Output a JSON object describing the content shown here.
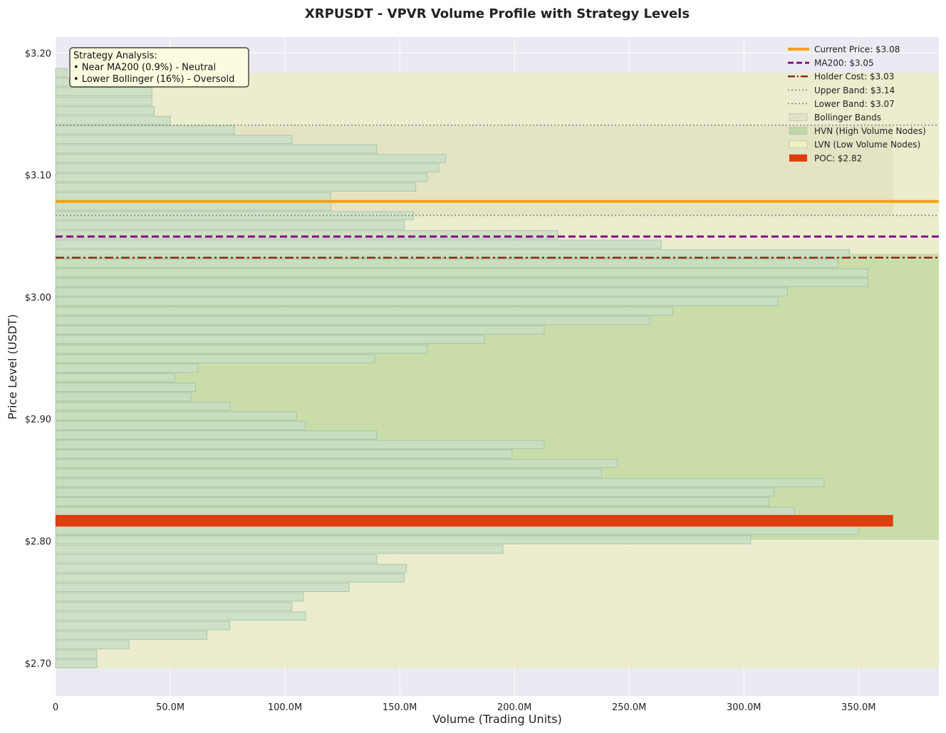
{
  "chart_data": {
    "type": "bar",
    "orientation": "horizontal",
    "title": "XRPUSDT - VPVR Volume Profile with Strategy Levels",
    "xlabel": "Volume (Trading Units)",
    "ylabel": "Price Level (USDT)",
    "xlim": [
      0,
      385000000
    ],
    "ylim": [
      2.673,
      3.213
    ],
    "x_ticks": [
      0,
      50000000,
      100000000,
      150000000,
      200000000,
      250000000,
      300000000,
      350000000
    ],
    "x_tick_labels": [
      "0",
      "50.0M",
      "100.0M",
      "150.0M",
      "200.0M",
      "250.0M",
      "300.0M",
      "350.0M"
    ],
    "y_ticks": [
      2.7,
      2.8,
      2.9,
      3.0,
      3.1,
      3.2
    ],
    "y_tick_labels": [
      "$2.70",
      "$2.80",
      "$2.90",
      "$3.00",
      "$3.10",
      "$3.20"
    ],
    "grid": true,
    "legend_position": "top-right",
    "bar_height": 0.0068,
    "bars": [
      {
        "price": 2.6994,
        "volume": 18000000
      },
      {
        "price": 2.7072,
        "volume": 18000000
      },
      {
        "price": 2.715,
        "volume": 32000000
      },
      {
        "price": 2.7228,
        "volume": 66000000
      },
      {
        "price": 2.7306,
        "volume": 76000000
      },
      {
        "price": 2.7385,
        "volume": 109000000
      },
      {
        "price": 2.7463,
        "volume": 103000000
      },
      {
        "price": 2.7541,
        "volume": 108000000
      },
      {
        "price": 2.7619,
        "volume": 128000000
      },
      {
        "price": 2.7697,
        "volume": 152000000
      },
      {
        "price": 2.7775,
        "volume": 153000000
      },
      {
        "price": 2.7853,
        "volume": 140000000
      },
      {
        "price": 2.7932,
        "volume": 195000000
      },
      {
        "price": 2.801,
        "volume": 303000000
      },
      {
        "price": 2.8088,
        "volume": 350000000
      },
      {
        "price": 2.8166,
        "volume": 365000000
      },
      {
        "price": 2.8244,
        "volume": 322000000
      },
      {
        "price": 2.8322,
        "volume": 311000000
      },
      {
        "price": 2.84,
        "volume": 313000000
      },
      {
        "price": 2.8478,
        "volume": 335000000
      },
      {
        "price": 2.8557,
        "volume": 238000000
      },
      {
        "price": 2.8635,
        "volume": 245000000
      },
      {
        "price": 2.8713,
        "volume": 199000000
      },
      {
        "price": 2.8791,
        "volume": 213000000
      },
      {
        "price": 2.8869,
        "volume": 140000000
      },
      {
        "price": 2.8947,
        "volume": 109000000
      },
      {
        "price": 2.9025,
        "volume": 105000000
      },
      {
        "price": 2.9104,
        "volume": 76000000
      },
      {
        "price": 2.9182,
        "volume": 59000000
      },
      {
        "price": 2.926,
        "volume": 61000000
      },
      {
        "price": 2.9338,
        "volume": 52000000
      },
      {
        "price": 2.9416,
        "volume": 62000000
      },
      {
        "price": 2.9494,
        "volume": 139000000
      },
      {
        "price": 2.9572,
        "volume": 162000000
      },
      {
        "price": 2.9651,
        "volume": 187000000
      },
      {
        "price": 2.9729,
        "volume": 213000000
      },
      {
        "price": 2.9807,
        "volume": 259000000
      },
      {
        "price": 2.9885,
        "volume": 269000000
      },
      {
        "price": 2.9963,
        "volume": 315000000
      },
      {
        "price": 3.0041,
        "volume": 319000000
      },
      {
        "price": 3.0119,
        "volume": 354000000
      },
      {
        "price": 3.0197,
        "volume": 354000000
      },
      {
        "price": 3.0275,
        "volume": 341000000
      },
      {
        "price": 3.0354,
        "volume": 346000000
      },
      {
        "price": 3.0432,
        "volume": 264000000
      },
      {
        "price": 3.051,
        "volume": 219000000
      },
      {
        "price": 3.0588,
        "volume": 152000000
      },
      {
        "price": 3.0666,
        "volume": 156000000
      },
      {
        "price": 3.0744,
        "volume": 120000000
      },
      {
        "price": 3.0822,
        "volume": 120000000
      },
      {
        "price": 3.0901,
        "volume": 157000000
      },
      {
        "price": 3.0979,
        "volume": 162000000
      },
      {
        "price": 3.1057,
        "volume": 167000000
      },
      {
        "price": 3.1135,
        "volume": 170000000
      },
      {
        "price": 3.1213,
        "volume": 140000000
      },
      {
        "price": 3.1291,
        "volume": 103000000
      },
      {
        "price": 3.1369,
        "volume": 78000000
      },
      {
        "price": 3.1447,
        "volume": 50000000
      },
      {
        "price": 3.1526,
        "volume": 43000000
      },
      {
        "price": 3.1604,
        "volume": 42000000
      },
      {
        "price": 3.1682,
        "volume": 42000000
      },
      {
        "price": 3.176,
        "volume": 42000000
      },
      {
        "price": 3.1838,
        "volume": 5000000
      }
    ],
    "poc": {
      "price": 2.8166,
      "volume": 365000000
    },
    "levels": {
      "current_price": 3.0783,
      "ma200": 3.0495,
      "holder_cost": 3.0322,
      "upper_band": 3.1408,
      "lower_band": 3.0668
    },
    "zones": {
      "bollinger_band": [
        3.0668,
        3.1408
      ],
      "bollinger_band_volume_limit": 365000000,
      "hvn": [
        2.801,
        3.0354
      ],
      "lvn": [
        [
          2.6955,
          2.801
        ],
        [
          3.0354,
          3.1838
        ]
      ]
    },
    "legend": [
      {
        "label": "Current Price: $3.08",
        "style": "solid-thick",
        "color": "#f5a012"
      },
      {
        "label": "MA200: $3.05",
        "style": "dashed",
        "color": "#800080"
      },
      {
        "label": "Holder Cost: $3.03",
        "style": "dashdot",
        "color": "#8b2a1b"
      },
      {
        "label": "Upper Band: $3.14",
        "style": "dotted",
        "color": "#888888"
      },
      {
        "label": "Lower Band: $3.07",
        "style": "dotted",
        "color": "#888888"
      },
      {
        "label": "Bollinger Bands",
        "style": "patch",
        "color": "#e2e2c8"
      },
      {
        "label": "HVN (High Volume Nodes)",
        "style": "patch",
        "color": "#bcd8a6"
      },
      {
        "label": "LVN (Low Volume Nodes)",
        "style": "patch",
        "color": "#f0efc0"
      },
      {
        "label": "POC: $2.82",
        "style": "patch",
        "color": "#dd3d0f"
      }
    ],
    "annotation": {
      "lines": [
        "Strategy Analysis:",
        "• Near MA200 (0.9%) - Neutral",
        "• Lower Bollinger (16%) - Oversold"
      ]
    },
    "colors": {
      "plot_background": "#eaeaf2",
      "bar_fill": "#c9dfc4",
      "bar_edge": "#9fc1a6",
      "hvn_zone": "#c8dca4",
      "lvn_zone": "#ececcb",
      "bollinger_zone": "#dcdcbb",
      "poc": "#dd3d0f",
      "current_price": "#f5a012",
      "ma200": "#800080",
      "holder_cost": "#8b2a1b",
      "band_line": "#8a8a8a",
      "annotation_bg": "#fbfbe0"
    }
  }
}
